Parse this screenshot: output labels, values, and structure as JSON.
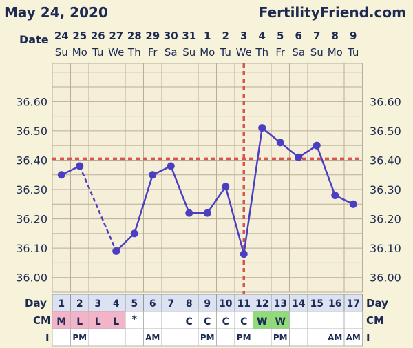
{
  "header": {
    "date": "May 24, 2020",
    "site": "FertilityFriend.com",
    "date_label": "Date"
  },
  "chart_data": {
    "type": "line",
    "dates": [
      "24",
      "25",
      "26",
      "27",
      "28",
      "29",
      "30",
      "31",
      "1",
      "2",
      "3",
      "4",
      "5",
      "6",
      "7",
      "8",
      "9"
    ],
    "weekdays": [
      "Su",
      "Mo",
      "Tu",
      "We",
      "Th",
      "Fr",
      "Sa",
      "Su",
      "Mo",
      "Tu",
      "We",
      "Th",
      "Fr",
      "Sa",
      "Su",
      "Mo",
      "Tu"
    ],
    "cycle_days": [
      "1",
      "2",
      "3",
      "4",
      "5",
      "6",
      "7",
      "8",
      "9",
      "10",
      "11",
      "12",
      "13",
      "14",
      "15",
      "16",
      "17"
    ],
    "temperatures": [
      36.35,
      36.38,
      null,
      36.09,
      36.15,
      36.35,
      36.38,
      36.22,
      36.22,
      36.31,
      36.08,
      36.51,
      36.46,
      36.41,
      36.45,
      36.28,
      36.25
    ],
    "y_ticks": [
      "36.60",
      "36.50",
      "36.40",
      "36.30",
      "36.20",
      "36.10",
      "36.00"
    ],
    "ylim": [
      35.95,
      36.73
    ],
    "coverline": 36.405,
    "ovulation_day": "11",
    "row_labels": {
      "day": "Day",
      "cm": "CM",
      "i": "I"
    },
    "cm": [
      "M",
      "L",
      "L",
      "L",
      "*",
      "",
      "",
      "C",
      "C",
      "C",
      "C",
      "W",
      "W",
      "",
      "",
      "",
      ""
    ],
    "intercourse": [
      "",
      "PM",
      "",
      "",
      "",
      "AM",
      "",
      "",
      "PM",
      "",
      "PM",
      "",
      "PM",
      "",
      "",
      "AM",
      "AM"
    ],
    "colors": {
      "line": "#4a3fc0",
      "coverline": "#d9534f",
      "grid": "#b7ae96",
      "cm_menstrual": "#f4b4c8",
      "cm_watery": "#8fdc78"
    }
  }
}
